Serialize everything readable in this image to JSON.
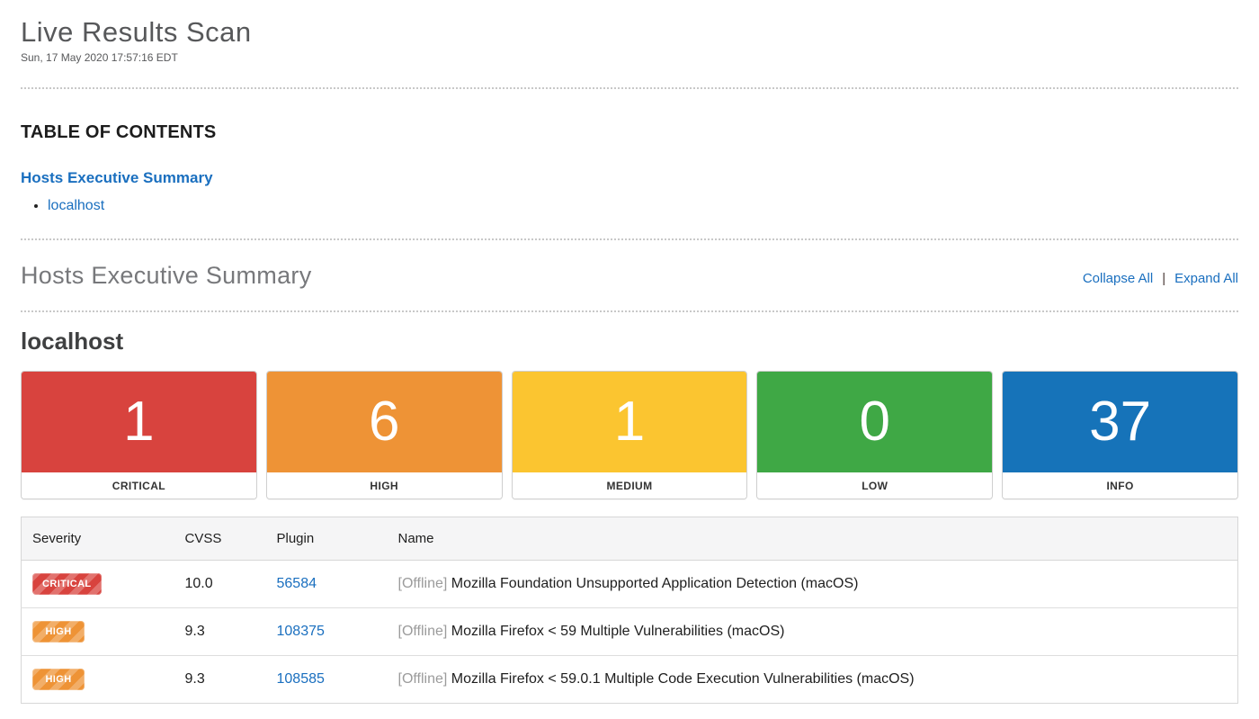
{
  "header": {
    "title": "Live Results Scan",
    "timestamp": "Sun, 17 May 2020 17:57:16 EDT"
  },
  "toc": {
    "heading": "TABLE OF CONTENTS",
    "section_link": "Hosts Executive Summary",
    "host_links": [
      {
        "label": "localhost"
      }
    ]
  },
  "summary": {
    "heading": "Hosts Executive Summary",
    "collapse_all_label": "Collapse All",
    "separator": "|",
    "expand_all_label": "Expand All",
    "host_name": "localhost"
  },
  "severity_cards": [
    {
      "label": "CRITICAL",
      "count": "1",
      "color": "#d8433e"
    },
    {
      "label": "HIGH",
      "count": "6",
      "color": "#ee9336"
    },
    {
      "label": "MEDIUM",
      "count": "1",
      "color": "#fbc530"
    },
    {
      "label": "LOW",
      "count": "0",
      "color": "#3fa845"
    },
    {
      "label": "INFO",
      "count": "37",
      "color": "#1673b9"
    }
  ],
  "vuln_table": {
    "columns": {
      "severity": "Severity",
      "cvss": "CVSS",
      "plugin": "Plugin",
      "name": "Name"
    },
    "rows": [
      {
        "severity": "CRITICAL",
        "severity_color": "#d8433e",
        "cvss": "10.0",
        "plugin_id": "56584",
        "status_tag": "[Offline]",
        "name": "Mozilla Foundation Unsupported Application Detection (macOS)"
      },
      {
        "severity": "HIGH",
        "severity_color": "#ee9336",
        "cvss": "9.3",
        "plugin_id": "108375",
        "status_tag": "[Offline]",
        "name": "Mozilla Firefox < 59 Multiple Vulnerabilities (macOS)"
      },
      {
        "severity": "HIGH",
        "severity_color": "#ee9336",
        "cvss": "9.3",
        "plugin_id": "108585",
        "status_tag": "[Offline]",
        "name": "Mozilla Firefox < 59.0.1 Multiple Code Execution Vulnerabilities (macOS)"
      }
    ]
  },
  "colors": {
    "link_blue": "#1a6fbf",
    "critical": "#d8433e",
    "high": "#ee9336",
    "medium": "#fbc530",
    "low": "#3fa845",
    "info": "#1673b9"
  }
}
